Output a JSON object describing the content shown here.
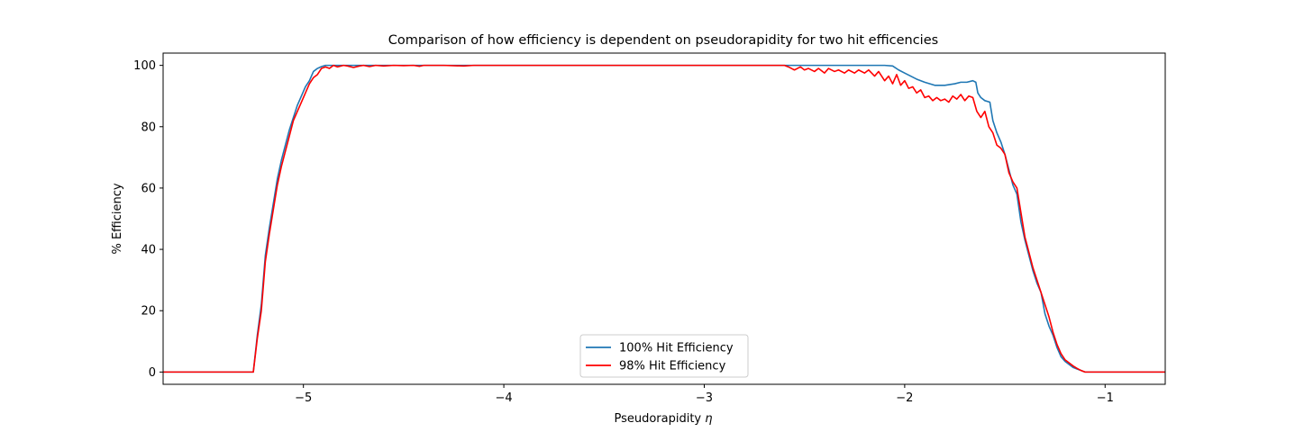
{
  "chart_data": {
    "type": "line",
    "title": "Comparison of how efficiency is dependent on pseudorapidity for two hit efficencies",
    "xlabel": "Pseudorapidity",
    "xlabel_symbol": "η",
    "ylabel": "% Efficiency",
    "xlim": [
      -5.7,
      -0.7
    ],
    "ylim": [
      -4,
      104
    ],
    "xticks": [
      -5,
      -4,
      -3,
      -2,
      -1
    ],
    "xtick_labels": [
      "−5",
      "−4",
      "−3",
      "−2",
      "−1"
    ],
    "yticks": [
      0,
      20,
      40,
      60,
      80,
      100
    ],
    "ytick_labels": [
      "0",
      "20",
      "40",
      "60",
      "80",
      "100"
    ],
    "grid": false,
    "legend_position": "bottom-center",
    "series": [
      {
        "name": "100% Hit Efficiency",
        "color": "#1f77b4",
        "x": [
          -5.7,
          -5.26,
          -5.25,
          -5.23,
          -5.21,
          -5.19,
          -5.17,
          -5.15,
          -5.13,
          -5.11,
          -5.09,
          -5.07,
          -5.05,
          -5.03,
          -5.01,
          -4.99,
          -4.97,
          -4.95,
          -4.93,
          -4.91,
          -4.89,
          -4.87,
          -4.85,
          -4.83,
          -4.8,
          -4.75,
          -4.7,
          -4.5,
          -4.0,
          -3.5,
          -3.0,
          -2.5,
          -2.2,
          -2.1,
          -2.06,
          -2.03,
          -2.0,
          -1.97,
          -1.94,
          -1.9,
          -1.85,
          -1.8,
          -1.75,
          -1.72,
          -1.69,
          -1.66,
          -1.645,
          -1.635,
          -1.62,
          -1.6,
          -1.575,
          -1.56,
          -1.54,
          -1.52,
          -1.5,
          -1.48,
          -1.46,
          -1.44,
          -1.42,
          -1.4,
          -1.38,
          -1.36,
          -1.34,
          -1.32,
          -1.3,
          -1.28,
          -1.26,
          -1.24,
          -1.22,
          -1.2,
          -1.18,
          -1.16,
          -1.14,
          -1.12,
          -1.1,
          -1.08,
          -1.06,
          -1.04,
          -1.02,
          -1.0,
          -0.7
        ],
        "y": [
          0,
          0,
          0,
          12,
          22,
          38,
          47,
          55,
          63,
          69,
          74,
          79,
          83,
          87,
          90,
          93,
          95,
          98,
          99,
          99.6,
          100,
          100,
          100,
          100,
          100,
          100,
          100,
          100,
          100,
          100,
          100,
          100,
          100,
          100,
          99.8,
          98.5,
          97.5,
          96.5,
          95.5,
          94.5,
          93.5,
          93.5,
          94,
          94.5,
          94.5,
          95,
          94.5,
          91,
          89.5,
          88.5,
          88,
          82,
          78,
          75,
          71,
          66,
          61,
          58,
          49,
          43,
          38,
          33,
          29,
          26,
          19,
          15,
          12,
          8,
          5,
          3.5,
          2.5,
          1.5,
          1,
          0.5,
          0,
          0,
          0,
          0,
          0,
          0,
          0
        ]
      },
      {
        "name": "98% Hit Efficiency",
        "color": "#ff0000",
        "x": [
          -5.7,
          -5.26,
          -5.25,
          -5.23,
          -5.21,
          -5.19,
          -5.17,
          -5.15,
          -5.13,
          -5.11,
          -5.09,
          -5.07,
          -5.05,
          -5.03,
          -5.01,
          -4.99,
          -4.97,
          -4.95,
          -4.93,
          -4.91,
          -4.89,
          -4.87,
          -4.85,
          -4.83,
          -4.8,
          -4.78,
          -4.75,
          -4.72,
          -4.7,
          -4.67,
          -4.64,
          -4.6,
          -4.55,
          -4.5,
          -4.45,
          -4.42,
          -4.4,
          -4.3,
          -4.2,
          -4.15,
          -4.1,
          -4.0,
          -3.5,
          -3.0,
          -2.6,
          -2.58,
          -2.55,
          -2.52,
          -2.5,
          -2.48,
          -2.45,
          -2.43,
          -2.4,
          -2.38,
          -2.35,
          -2.33,
          -2.3,
          -2.28,
          -2.25,
          -2.23,
          -2.2,
          -2.18,
          -2.15,
          -2.13,
          -2.1,
          -2.08,
          -2.06,
          -2.04,
          -2.02,
          -2.0,
          -1.98,
          -1.96,
          -1.94,
          -1.92,
          -1.9,
          -1.88,
          -1.86,
          -1.84,
          -1.82,
          -1.8,
          -1.78,
          -1.76,
          -1.74,
          -1.72,
          -1.7,
          -1.68,
          -1.66,
          -1.64,
          -1.62,
          -1.6,
          -1.58,
          -1.56,
          -1.54,
          -1.52,
          -1.5,
          -1.48,
          -1.46,
          -1.44,
          -1.42,
          -1.4,
          -1.38,
          -1.36,
          -1.34,
          -1.32,
          -1.3,
          -1.28,
          -1.26,
          -1.24,
          -1.22,
          -1.2,
          -1.18,
          -1.16,
          -1.14,
          -1.12,
          -1.1,
          -1.08,
          -1.06,
          -1.04,
          -1.02,
          -1.0,
          -0.7
        ],
        "y": [
          0,
          0,
          0,
          11,
          20,
          36,
          45,
          53,
          61,
          67,
          72,
          77,
          82,
          85,
          88,
          91,
          94,
          96,
          97,
          99,
          99.5,
          99,
          100,
          99.5,
          100,
          99.8,
          99.3,
          99.8,
          100,
          99.6,
          100,
          99.8,
          100,
          99.9,
          100,
          99.7,
          100,
          100,
          99.8,
          100,
          100,
          100,
          100,
          100,
          100,
          99.5,
          98.5,
          99.5,
          98.5,
          99,
          98,
          99,
          97.5,
          99,
          98,
          98.5,
          97.5,
          98.5,
          97.5,
          98.5,
          97.5,
          98.5,
          96.5,
          98,
          95,
          96.5,
          94,
          97,
          93.5,
          95,
          92.5,
          93,
          91,
          92,
          89.5,
          90,
          88.5,
          89.5,
          88.5,
          89,
          88,
          90,
          89,
          90.5,
          88.5,
          90,
          89.5,
          85,
          83,
          85,
          80,
          78,
          74,
          73,
          71,
          65,
          62,
          60,
          52,
          44,
          39,
          34,
          30,
          26,
          22,
          18,
          13,
          9,
          6,
          4,
          3,
          2,
          1.2,
          0.5,
          0,
          0,
          0,
          0,
          0,
          0,
          0
        ]
      }
    ]
  }
}
